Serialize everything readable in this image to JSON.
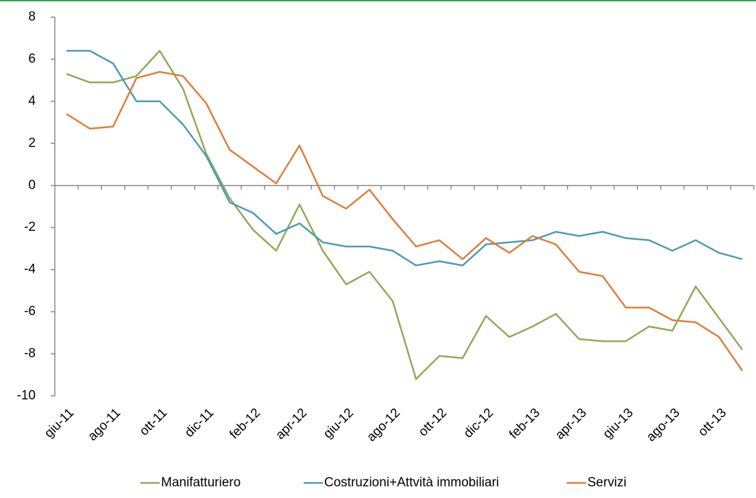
{
  "chart_data": {
    "type": "line",
    "categories": [
      "giu-11",
      null,
      "ago-11",
      null,
      "ott-11",
      null,
      "dic-11",
      null,
      "feb-12",
      null,
      "apr-12",
      null,
      "giu-12",
      null,
      "ago-12",
      null,
      "ott-12",
      null,
      "dic-12",
      null,
      "feb-13",
      null,
      "apr-13",
      null,
      "giu-13",
      null,
      "ago-13",
      null,
      "ott-13",
      null
    ],
    "series": [
      {
        "name": "Manifatturiero",
        "color": "#8cab55",
        "values": [
          5.3,
          4.9,
          4.9,
          5.2,
          6.4,
          4.6,
          1.5,
          -0.6,
          -2.1,
          -3.1,
          -0.9,
          -3.1,
          -4.7,
          -4.1,
          -5.5,
          -9.2,
          -8.1,
          -8.2,
          -6.2,
          -7.2,
          -6.7,
          -6.1,
          -7.3,
          -7.4,
          -7.4,
          -6.7,
          -6.9,
          -4.8,
          -6.3,
          -7.8
        ]
      },
      {
        "name": "Costruzioni+Attvità immobiliari",
        "color": "#4a9bb6",
        "values": [
          6.4,
          6.4,
          5.8,
          4.0,
          4.0,
          2.9,
          1.4,
          -0.8,
          -1.3,
          -2.3,
          -1.8,
          -2.7,
          -2.9,
          -2.9,
          -3.1,
          -3.8,
          -3.6,
          -3.8,
          -2.8,
          -2.7,
          -2.6,
          -2.2,
          -2.4,
          -2.2,
          -2.5,
          -2.6,
          -3.1,
          -2.6,
          -3.2,
          -3.5
        ]
      },
      {
        "name": "Servizi",
        "color": "#e17c3a",
        "values": [
          3.4,
          2.7,
          2.8,
          5.1,
          5.4,
          5.2,
          3.9,
          1.7,
          0.9,
          0.1,
          1.9,
          -0.5,
          -1.1,
          -0.2,
          -1.6,
          -2.9,
          -2.6,
          -3.5,
          -2.5,
          -3.2,
          -2.4,
          -2.8,
          -4.1,
          -4.3,
          -5.8,
          -5.8,
          -6.4,
          -6.5,
          -7.2,
          -8.8
        ]
      }
    ],
    "ylim": [
      -10,
      8
    ],
    "yticks": [
      -10,
      -8,
      -6,
      -4,
      -2,
      0,
      2,
      4,
      6,
      8
    ]
  }
}
